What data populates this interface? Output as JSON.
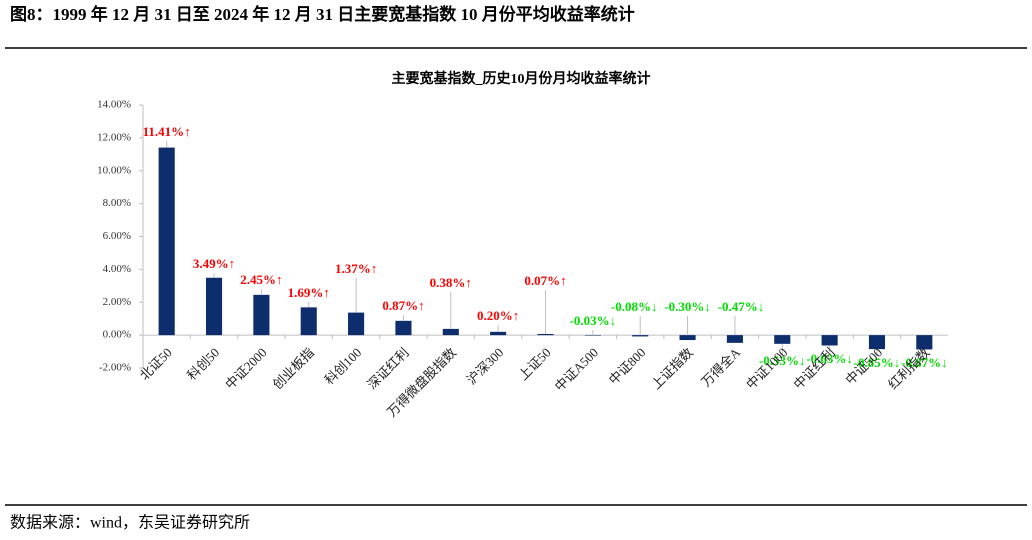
{
  "header": {
    "title": "图8：1999 年 12 月 31 日至 2024 年 12 月 31 日主要宽基指数 10 月份平均收益率统计"
  },
  "chart_data": {
    "type": "bar",
    "title": "主要宽基指数_历史10月份月均收益率统计",
    "categories": [
      "北证50",
      "科创50",
      "中证2000",
      "创业板指",
      "科创100",
      "深证红利",
      "万得微盘股指数",
      "沪深300",
      "上证50",
      "中证A500",
      "中证800",
      "上证指数",
      "万得全A",
      "中证1000",
      "中证红利",
      "中证500",
      "红利指数"
    ],
    "values": [
      11.41,
      3.49,
      2.45,
      1.69,
      1.37,
      0.87,
      0.38,
      0.2,
      0.07,
      -0.03,
      -0.08,
      -0.3,
      -0.47,
      -0.53,
      -0.63,
      -0.85,
      -0.87
    ],
    "value_labels": [
      "11.41%↑",
      "3.49%↑",
      "2.45%↑",
      "1.69%↑",
      "1.37%↑",
      "0.87%↑",
      "0.38%↑",
      "0.20%↑",
      "0.07%↑",
      "-0.03%↓",
      "-0.08%↓",
      "-0.30%↓",
      "-0.47%↓",
      "-0.53%↓",
      "-0.63%↓",
      "-0.85%↓",
      "-0.87%↓"
    ],
    "color": "#0d2d6c",
    "positive_label_color": "#ff0000",
    "negative_label_color": "#00dd00",
    "ylim": [
      -2,
      14
    ],
    "yticks": [
      {
        "value": -2,
        "label": "-2.00%"
      },
      {
        "value": 0,
        "label": "0.00%"
      },
      {
        "value": 2,
        "label": "2.00%"
      },
      {
        "value": 4,
        "label": "4.00%"
      },
      {
        "value": 6,
        "label": "6.00%"
      },
      {
        "value": 8,
        "label": "8.00%"
      },
      {
        "value": 10,
        "label": "10.00%"
      },
      {
        "value": 12,
        "label": "12.00%"
      },
      {
        "value": 14,
        "label": "14.00%"
      }
    ]
  },
  "footer": {
    "source": "数据来源：wind，东吴证券研究所"
  }
}
